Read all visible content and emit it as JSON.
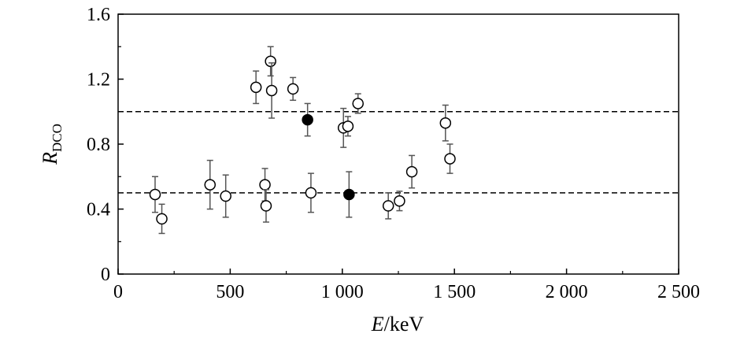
{
  "chart_data": {
    "type": "scatter",
    "xlim": [
      0,
      2500
    ],
    "ylim": [
      0,
      1.6
    ],
    "xticks": [
      {
        "value": 0,
        "label": "0"
      },
      {
        "value": 500,
        "label": "500"
      },
      {
        "value": 1000,
        "label": "1 000"
      },
      {
        "value": 1500,
        "label": "1 500"
      },
      {
        "value": 2000,
        "label": "2 000"
      },
      {
        "value": 2500,
        "label": "2 500"
      }
    ],
    "yticks": [
      {
        "value": 0,
        "label": "0"
      },
      {
        "value": 0.4,
        "label": "0.4"
      },
      {
        "value": 0.8,
        "label": "0.8"
      },
      {
        "value": 1.2,
        "label": "1.2"
      },
      {
        "value": 1.6,
        "label": "1.6"
      }
    ],
    "xlabel": {
      "italic": "E",
      "rest": "/keV"
    },
    "ylabel": {
      "italic": "R",
      "subscript": "DCO"
    },
    "reference_lines": [
      1.0,
      0.5
    ],
    "grid": false,
    "series": [
      {
        "filled": false,
        "points": [
          {
            "x": 165,
            "y": 0.49,
            "err": 0.11
          },
          {
            "x": 195,
            "y": 0.34,
            "err": 0.09
          },
          {
            "x": 410,
            "y": 0.55,
            "err": 0.15
          },
          {
            "x": 480,
            "y": 0.48,
            "err": 0.13
          },
          {
            "x": 615,
            "y": 1.15,
            "err": 0.1
          },
          {
            "x": 655,
            "y": 0.55,
            "err": 0.1
          },
          {
            "x": 660,
            "y": 0.42,
            "err": 0.1
          },
          {
            "x": 680,
            "y": 1.31,
            "err": 0.09
          },
          {
            "x": 685,
            "y": 1.13,
            "err": 0.17
          },
          {
            "x": 780,
            "y": 1.14,
            "err": 0.07
          },
          {
            "x": 860,
            "y": 0.5,
            "err": 0.12
          },
          {
            "x": 1005,
            "y": 0.9,
            "err": 0.12
          },
          {
            "x": 1025,
            "y": 0.91,
            "err": 0.06
          },
          {
            "x": 1070,
            "y": 1.05,
            "err": 0.06
          },
          {
            "x": 1205,
            "y": 0.42,
            "err": 0.08
          },
          {
            "x": 1255,
            "y": 0.45,
            "err": 0.06
          },
          {
            "x": 1310,
            "y": 0.63,
            "err": 0.1
          },
          {
            "x": 1460,
            "y": 0.93,
            "err": 0.11
          },
          {
            "x": 1480,
            "y": 0.71,
            "err": 0.09
          }
        ]
      },
      {
        "filled": true,
        "points": [
          {
            "x": 845,
            "y": 0.95,
            "err": 0.1
          },
          {
            "x": 1030,
            "y": 0.49,
            "err": 0.14
          }
        ]
      }
    ]
  }
}
